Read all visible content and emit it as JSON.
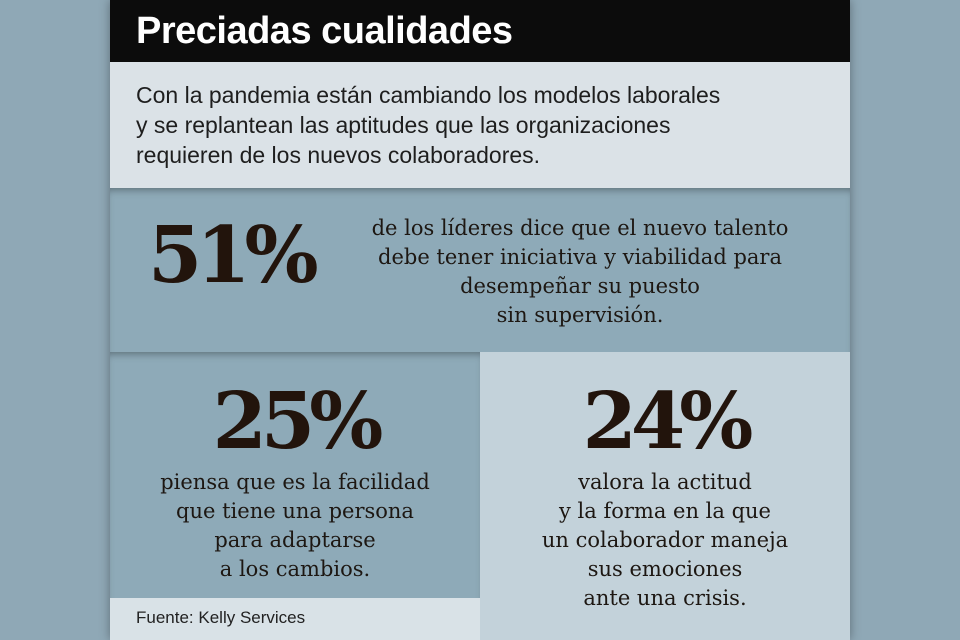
{
  "title": "Preciadas cualidades",
  "intro": [
    "Con la pandemia están cambiando los modelos laborales",
    "y se replantean las aptitudes que las organizaciones",
    "requieren de los nuevos colaboradores."
  ],
  "stats": [
    {
      "value": "51%",
      "lines": [
        "de los líderes dice que el nuevo talento",
        "debe tener iniciativa y viabilidad para",
        "desempeñar su puesto",
        "sin supervisión."
      ]
    },
    {
      "value": "25%",
      "lines": [
        "piensa que es la facilidad",
        "que tiene una persona",
        "para adaptarse",
        "a los cambios."
      ]
    },
    {
      "value": "24%",
      "lines": [
        "valora la actitud",
        "y la forma en la que",
        "un colaborador maneja",
        "sus emociones",
        "ante una crisis."
      ]
    }
  ],
  "source": "Fuente: Kelly Services"
}
